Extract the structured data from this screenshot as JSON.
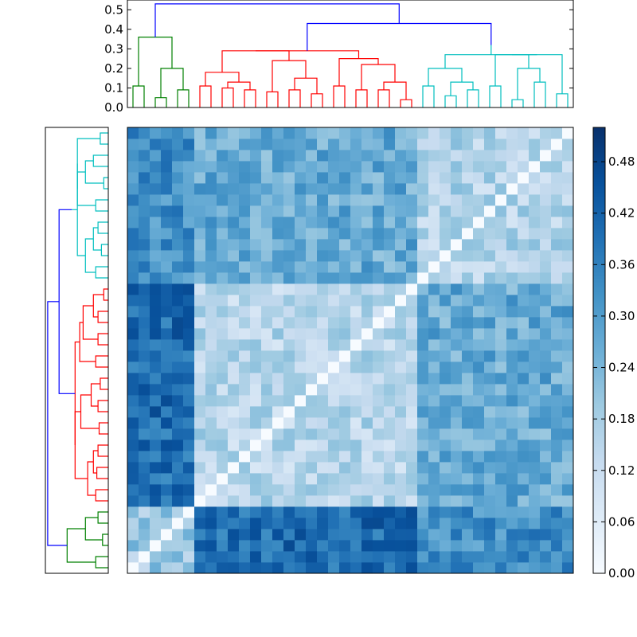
{
  "chart_data": {
    "type": "heatmap",
    "title": "",
    "n": 40,
    "color_scale": [
      "#f7fbff",
      "#deebf7",
      "#c6dbef",
      "#9ecae1",
      "#6baed6",
      "#4292c6",
      "#2171b5",
      "#08519c",
      "#08306b"
    ],
    "value_range": [
      0.0,
      0.52
    ],
    "group_sizes": [
      6,
      20,
      14
    ],
    "group_within": [
      0.2,
      0.15,
      0.16
    ],
    "group_between": [
      [
        0.0,
        0.4,
        0.33
      ],
      [
        0.4,
        0.0,
        0.27
      ],
      [
        0.33,
        0.27,
        0.0
      ]
    ],
    "colorbar": {
      "ticks": [
        "0.00",
        "0.06",
        "0.12",
        "0.18",
        "0.24",
        "0.30",
        "0.36",
        "0.42",
        "0.48"
      ]
    },
    "dendrogram": {
      "yticks": [
        "0.0",
        "0.1",
        "0.2",
        "0.3",
        "0.4",
        "0.5"
      ],
      "ylim": [
        0.0,
        0.55
      ],
      "colors": {
        "green": "#008000",
        "red": "#ff0000",
        "cyan": "#00bfbf",
        "blue": "#0000ff"
      },
      "root_height": 0.53,
      "links": [
        {
          "a": [
            0,
            1
          ],
          "h": 0.11,
          "c": "green"
        },
        {
          "a": [
            2,
            3
          ],
          "h": 0.05,
          "c": "green"
        },
        {
          "a": [
            4,
            5
          ],
          "h": 0.09,
          "c": "green"
        },
        {
          "a": [
            6,
            7
          ],
          "h": 0.11,
          "c": "red"
        },
        {
          "a": [
            8,
            9
          ],
          "h": 0.1,
          "c": "red"
        },
        {
          "a": [
            10,
            11
          ],
          "h": 0.09,
          "c": "red"
        },
        {
          "a": [
            12,
            13
          ],
          "h": 0.08,
          "c": "red"
        },
        {
          "a": [
            14,
            15
          ],
          "h": 0.09,
          "c": "red"
        },
        {
          "a": [
            16,
            17
          ],
          "h": 0.07,
          "c": "red"
        },
        {
          "a": [
            18,
            19
          ],
          "h": 0.11,
          "c": "red"
        },
        {
          "a": [
            20,
            21
          ],
          "h": 0.09,
          "c": "red"
        },
        {
          "a": [
            22,
            23
          ],
          "h": 0.09,
          "c": "red"
        },
        {
          "a": [
            24,
            25
          ],
          "h": 0.04,
          "c": "red"
        },
        {
          "a": [
            26,
            27
          ],
          "h": 0.11,
          "c": "cyan"
        },
        {
          "a": [
            28,
            29
          ],
          "h": 0.06,
          "c": "cyan"
        },
        {
          "a": [
            30,
            31
          ],
          "h": 0.09,
          "c": "cyan"
        },
        {
          "a": [
            32,
            33
          ],
          "h": 0.11,
          "c": "cyan"
        },
        {
          "a": [
            34,
            35
          ],
          "h": 0.04,
          "c": "cyan"
        },
        {
          "a": [
            36,
            37
          ],
          "h": 0.13,
          "c": "cyan"
        },
        {
          "a": [
            38,
            39
          ],
          "h": 0.07,
          "c": "cyan"
        }
      ]
    }
  }
}
